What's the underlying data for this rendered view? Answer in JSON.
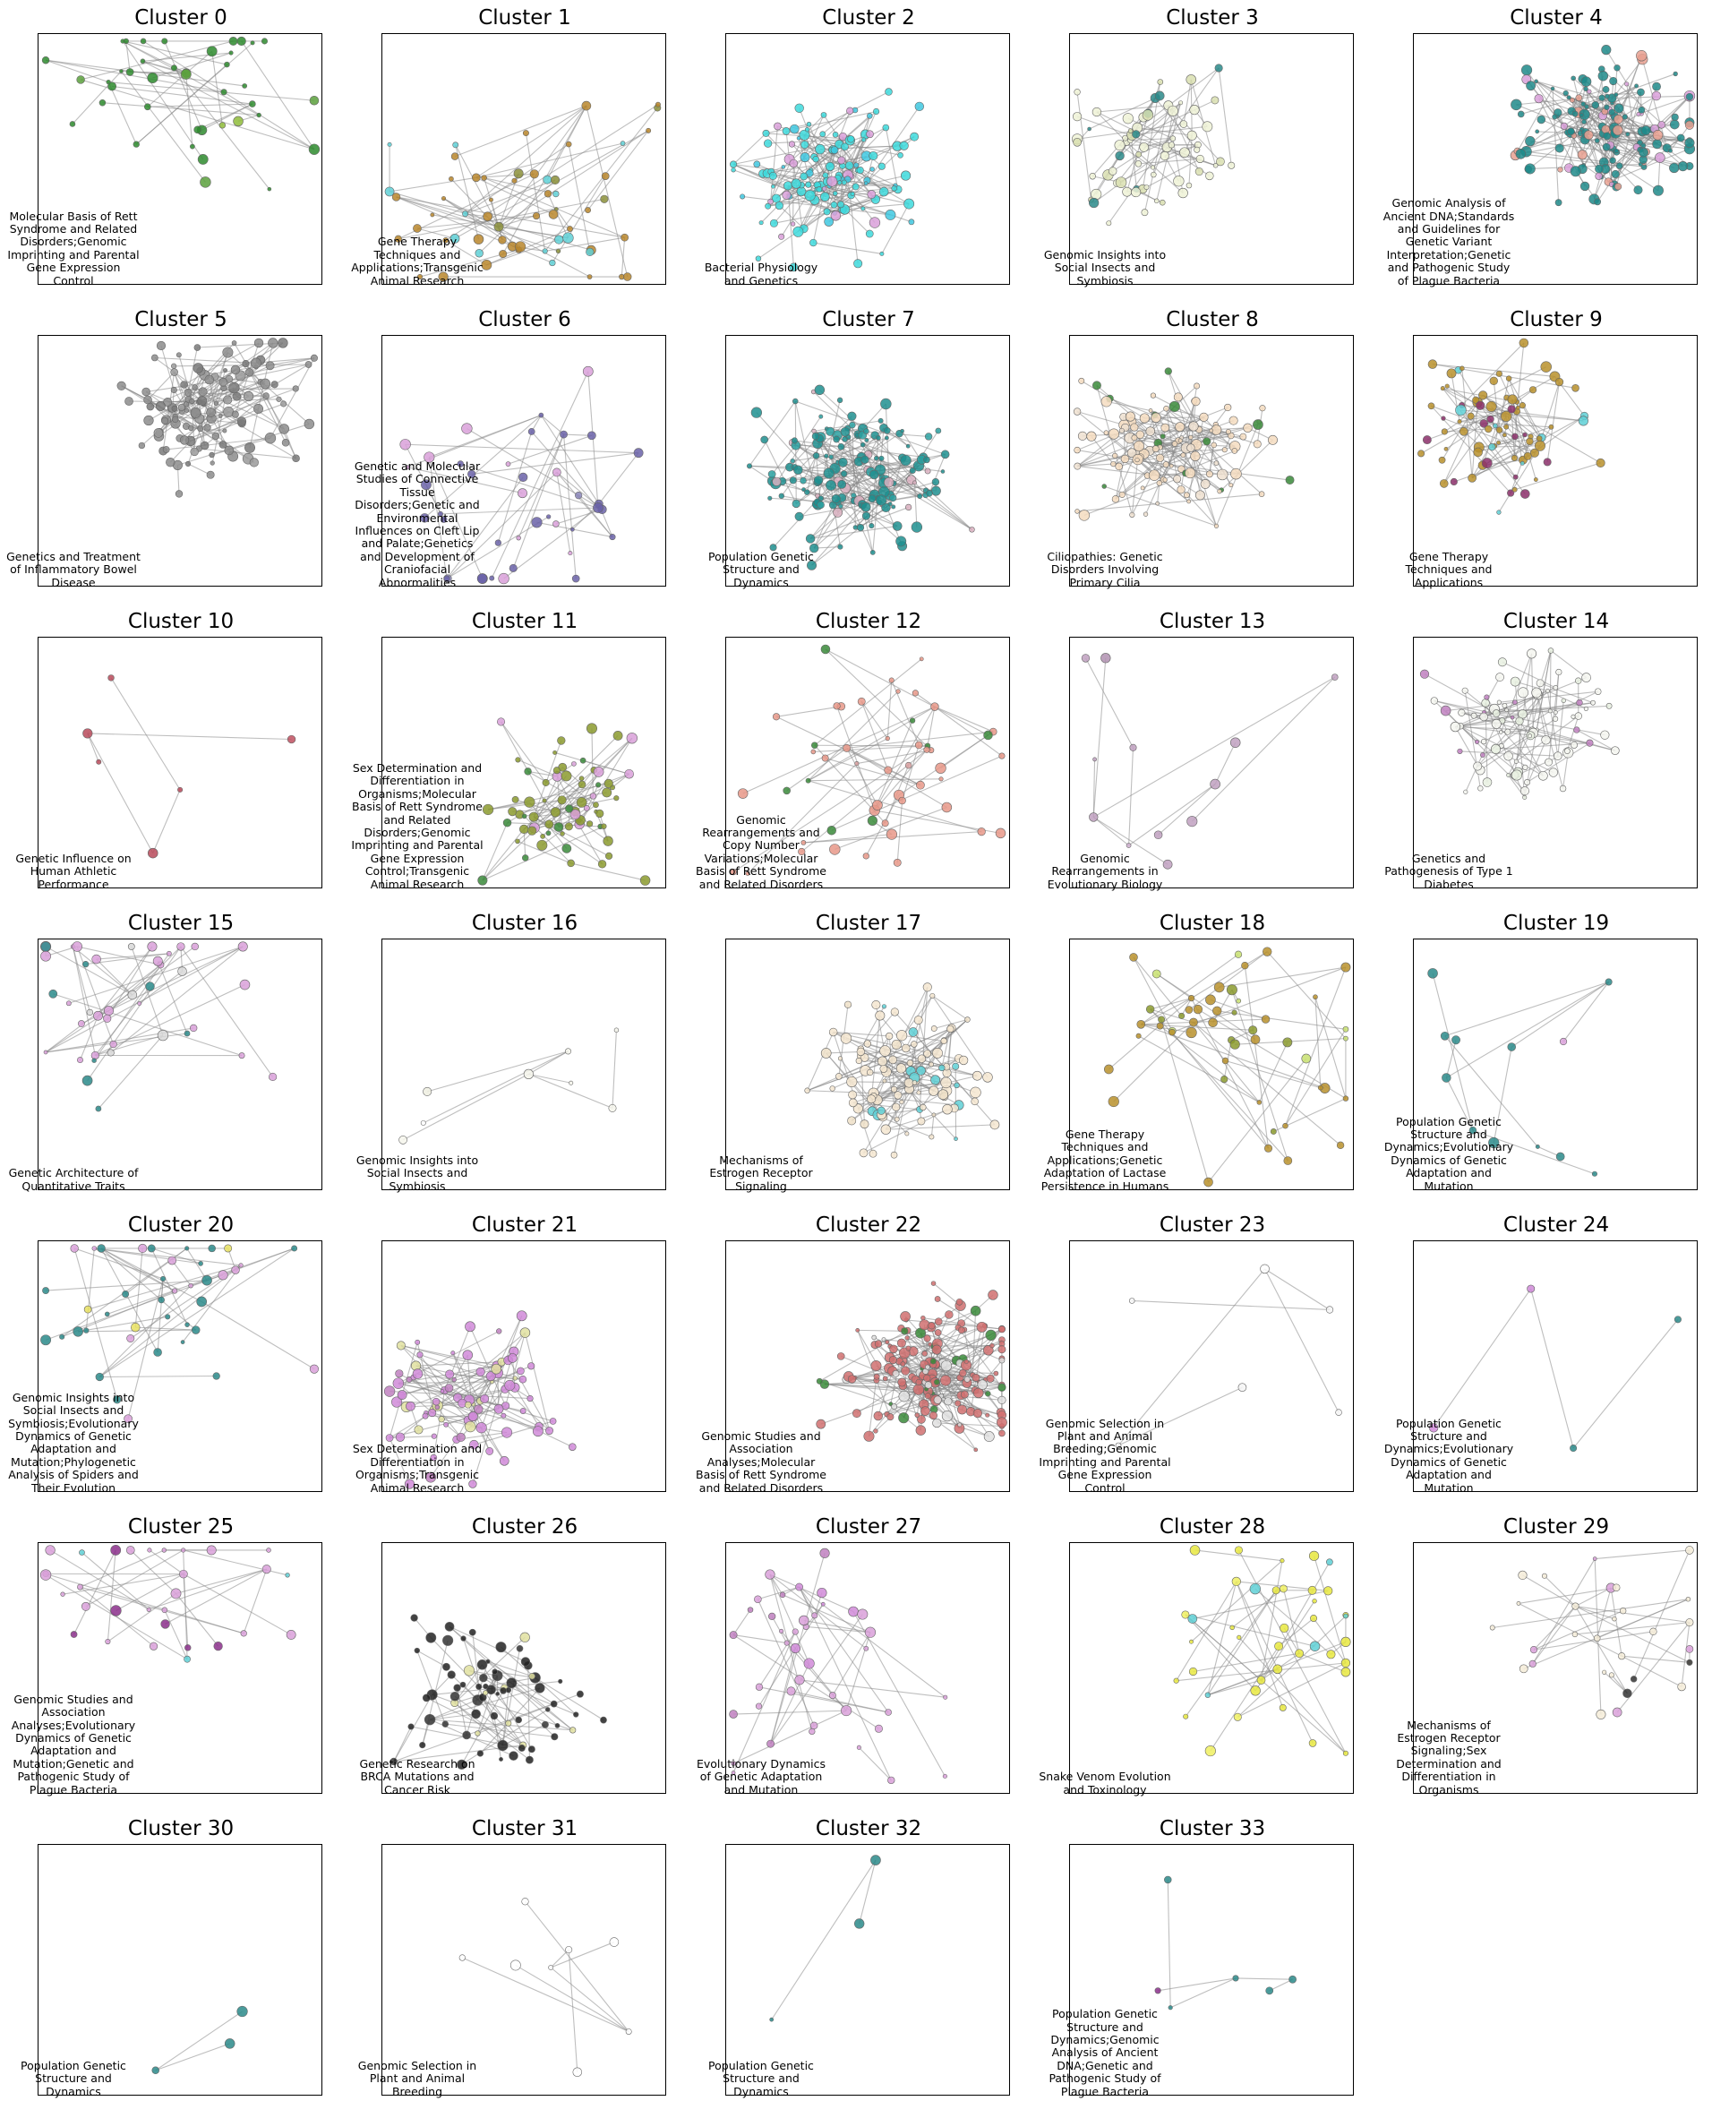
{
  "clusters": [
    {
      "title": "Cluster 0",
      "label": "Molecular Basis of Rett Syndrome and Related Disorders;Genomic Imprinting and Parental Gene Expression Control",
      "colors": [
        "#2e8b2e",
        "#5aa03c",
        "#8fbc3a"
      ]
    },
    {
      "title": "Cluster 1",
      "label": "Gene Therapy Techniques and Applications;Transgenic Animal Research",
      "colors": [
        "#b8862b",
        "#5fd0d6",
        "#8b8f3a"
      ]
    },
    {
      "title": "Cluster 2",
      "label": "Bacterial Physiology and Genetics",
      "colors": [
        "#3dd9dc",
        "#40c8e0",
        "#d9a0d9"
      ]
    },
    {
      "title": "Cluster 3",
      "label": "Genomic Insights into Social Insects and Symbiosis",
      "colors": [
        "#eef2d6",
        "#d9dfb0",
        "#2a8a8a"
      ]
    },
    {
      "title": "Cluster 4",
      "label": "Genomic Analysis of Ancient DNA;Standards and Guidelines for Genetic Variant Interpretation;Genetic and Pathogenic Study of Plague Bacteria",
      "colors": [
        "#1e8a8a",
        "#e8a090",
        "#d9a0d9"
      ]
    },
    {
      "title": "Cluster 5",
      "label": "Genetics and Treatment of Inflammatory Bowel Disease",
      "colors": [
        "#8c8c8c",
        "#9a9a9a",
        "#7a7a7a"
      ]
    },
    {
      "title": "Cluster 6",
      "label": "Genetic and Molecular Studies of Connective Tissue Disorders;Genetic and Environmental Influences on Cleft Lip and Palate;Genetics and Development of Craniofacial Abnormalities",
      "colors": [
        "#6a62a8",
        "#d9a0d9",
        "#8a85b8"
      ]
    },
    {
      "title": "Cluster 7",
      "label": "Population Genetic Structure and Dynamics",
      "colors": [
        "#1e8f8f",
        "#2aa0a0",
        "#d9b0c0"
      ]
    },
    {
      "title": "Cluster 8",
      "label": "Ciliopathies: Genetic Disorders Involving Primary Cilia",
      "colors": [
        "#f5dcc0",
        "#efe0d0",
        "#3a8a3a"
      ]
    },
    {
      "title": "Cluster 9",
      "label": "Gene Therapy Techniques and Applications",
      "colors": [
        "#b8902b",
        "#8b2f6a",
        "#5fd0d6"
      ]
    },
    {
      "title": "Cluster 10",
      "label": "Genetic Influence on Human Athletic Performance",
      "colors": [
        "#b84a5a",
        "#c05060",
        "#a04050"
      ]
    },
    {
      "title": "Cluster 11",
      "label": "Sex Determination and Differentiation in Organisms;Molecular Basis of Rett Syndrome and Related Disorders;Genomic Imprinting and Parental Gene Expression Control;Transgenic Animal Research",
      "colors": [
        "#8b9a2e",
        "#3a8a3a",
        "#d9a0d9"
      ]
    },
    {
      "title": "Cluster 12",
      "label": "Genomic Rearrangements and Copy Number Variations;Molecular Basis of Rett Syndrome and Related Disorders",
      "colors": [
        "#e89888",
        "#3a8a3a",
        "#d9a0a0"
      ]
    },
    {
      "title": "Cluster 13",
      "label": "Genomic Rearrangements in Evolutionary Biology",
      "colors": [
        "#c0a0c0",
        "#b090b0",
        "#d0b0d0"
      ]
    },
    {
      "title": "Cluster 14",
      "label": "Genetics and Pathogenesis of Type 1 Diabetes",
      "colors": [
        "#f4f6f0",
        "#e8f0e0",
        "#c080c0"
      ]
    },
    {
      "title": "Cluster 15",
      "label": "Genetic Architecture of Quantitative Traits",
      "colors": [
        "#d9a0d9",
        "#2a8a8a",
        "#d8d8d8"
      ]
    },
    {
      "title": "Cluster 16",
      "label": "Genomic Insights into Social Insects and Symbiosis",
      "colors": [
        "#f6f6ec",
        "#eeeee0",
        "#ffffff"
      ]
    },
    {
      "title": "Cluster 17",
      "label": "Mechanisms of Estrogen Receptor Signaling",
      "colors": [
        "#f5e6d0",
        "#efe0c8",
        "#5fd0d6"
      ]
    },
    {
      "title": "Cluster 18",
      "label": "Gene Therapy Techniques and Applications;Genetic Adaptation of Lactase Persistence in Humans",
      "colors": [
        "#b8902b",
        "#c8e070",
        "#8b9a2e"
      ]
    },
    {
      "title": "Cluster 19",
      "label": "Population Genetic Structure and Dynamics;Evolutionary Dynamics of Genetic Adaptation and Mutation",
      "colors": [
        "#2a8a8a",
        "#d9a0d9",
        "#2a8a8a"
      ]
    },
    {
      "title": "Cluster 20",
      "label": "Genomic Insights into Social Insects and Symbiosis;Evolutionary Dynamics of Genetic Adaptation and Mutation;Phylogenetic Analysis of Spiders and Their Evolution",
      "colors": [
        "#2a8a8a",
        "#d9a0d9",
        "#e8e060"
      ]
    },
    {
      "title": "Cluster 21",
      "label": "Sex Determination and Differentiation in Organisms;Transgenic Animal Research",
      "colors": [
        "#d08ad8",
        "#e0e0a0",
        "#c080c0"
      ]
    },
    {
      "title": "Cluster 22",
      "label": "Genomic Studies and Association Analyses;Molecular Basis of Rett Syndrome and Related Disorders",
      "colors": [
        "#d07070",
        "#e0e0e0",
        "#3a8a3a"
      ]
    },
    {
      "title": "Cluster 23",
      "label": "Genomic Selection in Plant and Animal Breeding;Genomic Imprinting and Parental Gene Expression Control",
      "colors": [
        "#f6f6f6",
        "#ffffff",
        "#8b9a2e"
      ]
    },
    {
      "title": "Cluster 24",
      "label": "Population Genetic Structure and Dynamics;Evolutionary Dynamics of Genetic Adaptation and Mutation",
      "colors": [
        "#d08ad8",
        "#2a8a8a",
        "#d9a0d9"
      ]
    },
    {
      "title": "Cluster 25",
      "label": "Genomic Studies and Association Analyses;Evolutionary Dynamics of Genetic Adaptation and Mutation;Genetic and Pathogenic Study of Plague Bacteria",
      "colors": [
        "#d9a0d9",
        "#8b2f8b",
        "#5fd0d6"
      ]
    },
    {
      "title": "Cluster 26",
      "label": "Genetic Research on BRCA Mutations and Cancer Risk",
      "colors": [
        "#222222",
        "#333333",
        "#e0e0a0"
      ]
    },
    {
      "title": "Cluster 27",
      "label": "Evolutionary Dynamics of Genetic Adaptation and Mutation",
      "colors": [
        "#d9a0d9",
        "#d08ad8",
        "#c080c0"
      ]
    },
    {
      "title": "Cluster 28",
      "label": "Snake Venom Evolution and Toxinology",
      "colors": [
        "#e8e840",
        "#f0f060",
        "#5fd0d6"
      ]
    },
    {
      "title": "Cluster 29",
      "label": "Mechanisms of Estrogen Receptor Signaling;Sex Determination and Differentiation in Organisms",
      "colors": [
        "#f5ecd8",
        "#d9a0d9",
        "#333333"
      ]
    },
    {
      "title": "Cluster 30",
      "label": "Population Genetic Structure and Dynamics",
      "colors": [
        "#2a8a8a",
        "#2a8a8a",
        "#2a8a8a"
      ]
    },
    {
      "title": "Cluster 31",
      "label": "Genomic Selection in Plant and Animal Breeding",
      "colors": [
        "#ffffff",
        "#f6f6f6",
        "#ffffff"
      ]
    },
    {
      "title": "Cluster 32",
      "label": "Population Genetic Structure and Dynamics",
      "colors": [
        "#2a8a8a",
        "#2a8a8a",
        "#2a8a8a"
      ]
    },
    {
      "title": "Cluster 33",
      "label": "Population Genetic Structure and Dynamics;Genomic Analysis of Ancient DNA;Genetic and Pathogenic Study of Plague Bacteria",
      "colors": [
        "#2a8a8a",
        "#8b2f8b",
        "#f0f0f0"
      ]
    }
  ]
}
